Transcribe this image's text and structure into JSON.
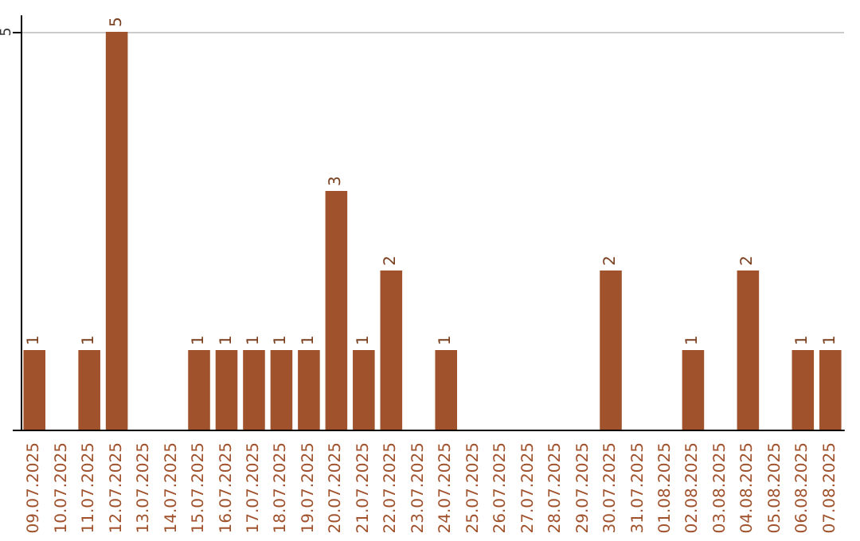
{
  "chart_data": {
    "type": "bar",
    "categories": [
      "09.07.2025",
      "10.07.2025",
      "11.07.2025",
      "12.07.2025",
      "13.07.2025",
      "14.07.2025",
      "15.07.2025",
      "16.07.2025",
      "17.07.2025",
      "18.07.2025",
      "19.07.2025",
      "20.07.2025",
      "21.07.2025",
      "22.07.2025",
      "23.07.2025",
      "24.07.2025",
      "25.07.2025",
      "26.07.2025",
      "27.07.2025",
      "28.07.2025",
      "29.07.2025",
      "30.07.2025",
      "31.07.2025",
      "01.08.2025",
      "02.08.2025",
      "03.08.2025",
      "04.08.2025",
      "05.08.2025",
      "06.08.2025",
      "07.08.2025"
    ],
    "values": [
      1,
      0,
      1,
      5,
      0,
      0,
      1,
      1,
      1,
      1,
      1,
      3,
      1,
      2,
      0,
      1,
      0,
      0,
      0,
      0,
      0,
      2,
      0,
      0,
      1,
      0,
      2,
      0,
      1,
      1
    ],
    "value_labels": [
      "1",
      null,
      "1",
      "5",
      null,
      null,
      "1",
      "1",
      "1",
      "1",
      "1",
      "3",
      "1",
      "2",
      null,
      "1",
      null,
      null,
      null,
      null,
      null,
      "2",
      null,
      null,
      "1",
      null,
      "2",
      null,
      "1",
      "1"
    ],
    "color": "#a0522d",
    "ylim": [
      0,
      5.2
    ],
    "yticks": [
      {
        "value": 0,
        "label": null
      },
      5
    ],
    "grid": "y"
  }
}
